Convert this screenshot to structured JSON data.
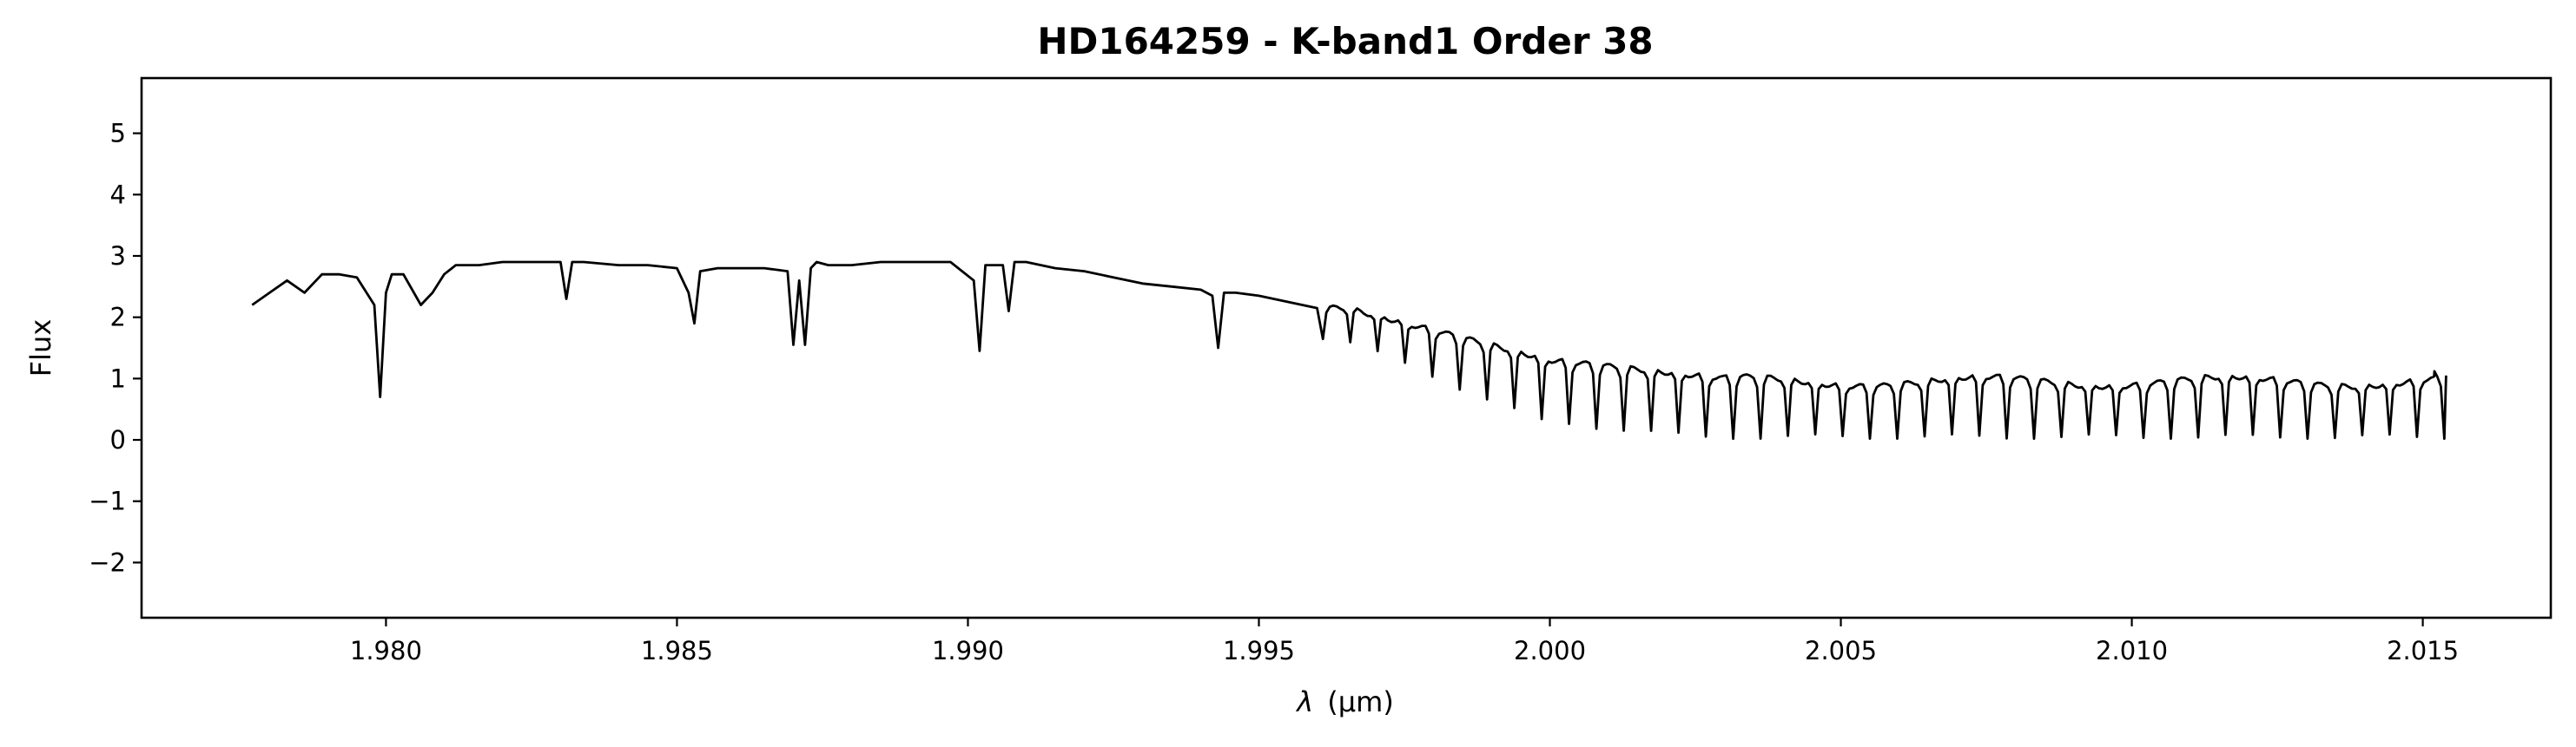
{
  "chart_data": {
    "type": "line",
    "title": "HD164259 - K-band1 Order 38",
    "xlabel_symbol": "λ",
    "xlabel_unit": "(μm)",
    "ylabel": "Flux",
    "xlim": [
      1.9758,
      2.0172
    ],
    "ylim": [
      -2.9,
      5.9
    ],
    "x_ticks": [
      1.98,
      1.985,
      1.99,
      1.995,
      2.0,
      2.005,
      2.01,
      2.015
    ],
    "x_tick_labels": [
      "1.980",
      "1.985",
      "1.990",
      "1.995",
      "2.000",
      "2.005",
      "2.010",
      "2.015"
    ],
    "y_ticks": [
      -2,
      -1,
      0,
      1,
      2,
      3,
      4,
      5
    ],
    "y_tick_labels": [
      "−2",
      "−1",
      "0",
      "1",
      "2",
      "3",
      "4",
      "5"
    ],
    "grid": false,
    "line_color": "#000000",
    "series": [
      {
        "x": [
          1.9777,
          1.978,
          1.9783,
          1.9786,
          1.9789,
          1.9792,
          1.9795,
          1.9798,
          1.9799,
          1.98,
          1.9801,
          1.9803,
          1.9806,
          1.9808,
          1.981,
          1.9812,
          1.9816,
          1.982,
          1.9825,
          1.983,
          1.9831,
          1.9832,
          1.9834,
          1.984,
          1.9845,
          1.985,
          1.9852,
          1.9853,
          1.9854,
          1.9857,
          1.986,
          1.9865,
          1.9869,
          1.987,
          1.9871,
          1.9872,
          1.9873,
          1.9874,
          1.9876,
          1.988,
          1.9885,
          1.989,
          1.9897,
          1.9901,
          1.9902,
          1.9903,
          1.9906,
          1.9907,
          1.9908,
          1.991,
          1.9915,
          1.992,
          1.9925,
          1.993,
          1.9935,
          1.994,
          1.9942,
          1.9943,
          1.9944,
          1.9946,
          1.995,
          1.9955,
          1.996
        ],
        "y": [
          2.2,
          2.4,
          2.6,
          2.4,
          2.7,
          2.7,
          2.65,
          2.2,
          0.7,
          2.4,
          2.7,
          2.7,
          2.2,
          2.4,
          2.7,
          2.85,
          2.85,
          2.9,
          2.9,
          2.9,
          2.3,
          2.9,
          2.9,
          2.85,
          2.85,
          2.8,
          2.4,
          1.9,
          2.75,
          2.8,
          2.8,
          2.8,
          2.75,
          1.55,
          2.6,
          1.55,
          2.8,
          2.9,
          2.85,
          2.85,
          2.9,
          2.9,
          2.9,
          2.6,
          1.45,
          2.85,
          2.85,
          2.1,
          2.9,
          2.9,
          2.8,
          2.75,
          2.65,
          2.55,
          2.5,
          2.45,
          2.35,
          1.5,
          2.4,
          2.4,
          2.35,
          2.25,
          2.15
        ]
      }
    ]
  }
}
